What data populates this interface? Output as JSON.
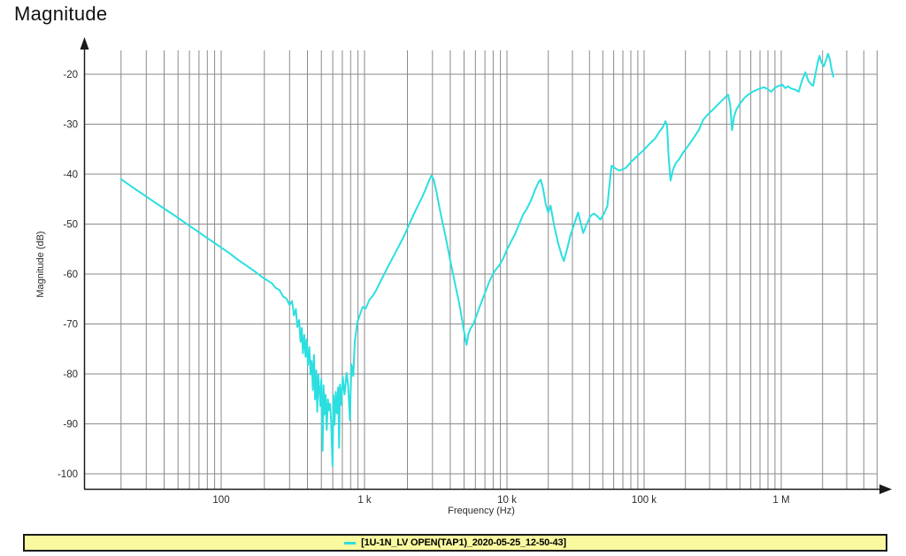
{
  "page": {
    "title": "Magnitude"
  },
  "colors": {
    "trace": "#2BDFE0",
    "grid": "#8a8a8a",
    "axis": "#1a1a1a",
    "legend_background": "#F9F9A0",
    "legend_border": "#1a1a1a",
    "text": "#2b2b2b"
  },
  "chart_data": {
    "type": "line",
    "title": "Magnitude",
    "xlabel": "Frequency (Hz)",
    "ylabel": "Magnitude (dB)",
    "x_scale": "log",
    "xlim": [
      10.5,
      5000000
    ],
    "ylim": [
      -105,
      -14
    ],
    "grid": true,
    "x_ticks": [
      {
        "value": 100,
        "label": "100"
      },
      {
        "value": 1000,
        "label": "1 k"
      },
      {
        "value": 10000,
        "label": "10 k"
      },
      {
        "value": 100000,
        "label": "100 k"
      },
      {
        "value": 1000000,
        "label": "1 M"
      }
    ],
    "y_ticks": [
      {
        "value": -20,
        "label": "-20"
      },
      {
        "value": -30,
        "label": "-30"
      },
      {
        "value": -40,
        "label": "-40"
      },
      {
        "value": -50,
        "label": "-50"
      },
      {
        "value": -60,
        "label": "-60"
      },
      {
        "value": -70,
        "label": "-70"
      },
      {
        "value": -80,
        "label": "-80"
      },
      {
        "value": -90,
        "label": "-90"
      },
      {
        "value": -100,
        "label": "-100"
      }
    ],
    "legend": {
      "position": "bottom",
      "entries": [
        {
          "label": "[1U-1N_LV OPEN(TAP1)_2020-05-25_12-50-43]",
          "color": "#2BDFE0"
        }
      ]
    },
    "series": [
      {
        "name": "[1U-1N_LV OPEN(TAP1)_2020-05-25_12-50-43]",
        "color": "#2BDFE0",
        "points": [
          [
            20,
            -41.0
          ],
          [
            24,
            -42.6
          ],
          [
            28,
            -43.9
          ],
          [
            33,
            -45.3
          ],
          [
            40,
            -46.9
          ],
          [
            48,
            -48.4
          ],
          [
            57,
            -49.9
          ],
          [
            68,
            -51.4
          ],
          [
            80,
            -52.8
          ],
          [
            90,
            -53.8
          ],
          [
            100,
            -54.7
          ],
          [
            115,
            -55.9
          ],
          [
            130,
            -57.1
          ],
          [
            150,
            -58.3
          ],
          [
            170,
            -59.4
          ],
          [
            195,
            -60.7
          ],
          [
            210,
            -61.3
          ],
          [
            225,
            -61.8
          ],
          [
            240,
            -62.8
          ],
          [
            255,
            -63.2
          ],
          [
            270,
            -64.5
          ],
          [
            285,
            -64.9
          ],
          [
            300,
            -66.2
          ],
          [
            312,
            -65.4
          ],
          [
            322,
            -68.3
          ],
          [
            332,
            -67.0
          ],
          [
            340,
            -70.6
          ],
          [
            350,
            -69.2
          ],
          [
            358,
            -73.6
          ],
          [
            365,
            -70.8
          ],
          [
            372,
            -75.9
          ],
          [
            380,
            -72.2
          ],
          [
            388,
            -76.6
          ],
          [
            395,
            -73.1
          ],
          [
            403,
            -78.2
          ],
          [
            412,
            -74.6
          ],
          [
            420,
            -80.1
          ],
          [
            428,
            -77.4
          ],
          [
            436,
            -83.2
          ],
          [
            444,
            -76.2
          ],
          [
            452,
            -85.1
          ],
          [
            460,
            -79.3
          ],
          [
            468,
            -87.6
          ],
          [
            476,
            -80.2
          ],
          [
            484,
            -82.9
          ],
          [
            492,
            -86.4
          ],
          [
            500,
            -81.0
          ],
          [
            510,
            -95.4
          ],
          [
            518,
            -82.3
          ],
          [
            526,
            -88.1
          ],
          [
            535,
            -84.2
          ],
          [
            545,
            -91.2
          ],
          [
            555,
            -85.1
          ],
          [
            565,
            -87.3
          ],
          [
            575,
            -86.0
          ],
          [
            585,
            -89.5
          ],
          [
            598,
            -98.4
          ],
          [
            608,
            -84.3
          ],
          [
            618,
            -90.2
          ],
          [
            630,
            -83.6
          ],
          [
            642,
            -87.9
          ],
          [
            655,
            -82.7
          ],
          [
            665,
            -94.8
          ],
          [
            675,
            -82.1
          ],
          [
            690,
            -86.2
          ],
          [
            705,
            -80.6
          ],
          [
            725,
            -84.1
          ],
          [
            750,
            -79.8
          ],
          [
            770,
            -82.5
          ],
          [
            790,
            -89.2
          ],
          [
            812,
            -78.1
          ],
          [
            835,
            -80.4
          ],
          [
            855,
            -73.6
          ],
          [
            890,
            -69.7
          ],
          [
            930,
            -68.1
          ],
          [
            970,
            -66.6
          ],
          [
            1020,
            -66.9
          ],
          [
            1080,
            -65.2
          ],
          [
            1140,
            -64.4
          ],
          [
            1200,
            -63.4
          ],
          [
            1300,
            -61.4
          ],
          [
            1400,
            -59.6
          ],
          [
            1500,
            -57.9
          ],
          [
            1600,
            -56.4
          ],
          [
            1750,
            -54.3
          ],
          [
            1900,
            -52.3
          ],
          [
            2100,
            -49.5
          ],
          [
            2300,
            -47.1
          ],
          [
            2500,
            -45.0
          ],
          [
            2700,
            -42.9
          ],
          [
            2850,
            -41.2
          ],
          [
            2950,
            -40.3
          ],
          [
            3050,
            -41.0
          ],
          [
            3200,
            -43.5
          ],
          [
            3400,
            -47.5
          ],
          [
            3700,
            -52.4
          ],
          [
            4000,
            -57.3
          ],
          [
            4300,
            -61.7
          ],
          [
            4600,
            -65.6
          ],
          [
            4850,
            -69.3
          ],
          [
            5000,
            -71.5
          ],
          [
            5100,
            -73.0
          ],
          [
            5200,
            -74.2
          ],
          [
            5350,
            -72.1
          ],
          [
            5550,
            -70.9
          ],
          [
            5800,
            -70.1
          ],
          [
            6100,
            -68.4
          ],
          [
            6500,
            -66.2
          ],
          [
            7000,
            -63.8
          ],
          [
            7600,
            -61.2
          ],
          [
            8200,
            -59.4
          ],
          [
            8800,
            -58.3
          ],
          [
            9400,
            -56.9
          ],
          [
            10000,
            -55.1
          ],
          [
            10700,
            -53.5
          ],
          [
            11400,
            -52.1
          ],
          [
            12200,
            -50.2
          ],
          [
            13100,
            -48.1
          ],
          [
            14000,
            -46.9
          ],
          [
            15000,
            -45.2
          ],
          [
            16000,
            -43.2
          ],
          [
            17000,
            -41.6
          ],
          [
            17600,
            -41.1
          ],
          [
            18300,
            -42.8
          ],
          [
            19200,
            -46.1
          ],
          [
            20000,
            -47.7
          ],
          [
            20800,
            -46.3
          ],
          [
            22000,
            -50.1
          ],
          [
            23500,
            -53.6
          ],
          [
            25000,
            -56.2
          ],
          [
            26000,
            -57.4
          ],
          [
            27500,
            -54.9
          ],
          [
            29000,
            -52.3
          ],
          [
            31000,
            -49.9
          ],
          [
            33000,
            -47.7
          ],
          [
            34500,
            -49.8
          ],
          [
            36000,
            -51.8
          ],
          [
            38000,
            -50.1
          ],
          [
            40500,
            -48.4
          ],
          [
            43000,
            -47.9
          ],
          [
            45500,
            -48.4
          ],
          [
            48000,
            -49.1
          ],
          [
            51000,
            -47.9
          ],
          [
            54000,
            -46.4
          ],
          [
            56000,
            -41.9
          ],
          [
            58000,
            -38.3
          ],
          [
            60000,
            -38.6
          ],
          [
            63000,
            -39.0
          ],
          [
            66000,
            -39.3
          ],
          [
            70000,
            -39.0
          ],
          [
            74000,
            -38.7
          ],
          [
            80000,
            -37.6
          ],
          [
            86000,
            -36.8
          ],
          [
            93000,
            -35.9
          ],
          [
            100000,
            -35.1
          ],
          [
            110000,
            -33.9
          ],
          [
            120000,
            -32.9
          ],
          [
            130000,
            -31.4
          ],
          [
            137000,
            -30.6
          ],
          [
            143000,
            -29.4
          ],
          [
            147000,
            -30.2
          ],
          [
            151000,
            -36.5
          ],
          [
            156000,
            -41.3
          ],
          [
            162000,
            -39.2
          ],
          [
            170000,
            -37.8
          ],
          [
            180000,
            -37.0
          ],
          [
            193000,
            -35.6
          ],
          [
            210000,
            -34.3
          ],
          [
            230000,
            -32.7
          ],
          [
            250000,
            -31.2
          ],
          [
            270000,
            -29.1
          ],
          [
            295000,
            -27.9
          ],
          [
            320000,
            -27.0
          ],
          [
            350000,
            -25.9
          ],
          [
            375000,
            -25.1
          ],
          [
            395000,
            -24.5
          ],
          [
            410000,
            -24.1
          ],
          [
            425000,
            -26.3
          ],
          [
            438000,
            -31.2
          ],
          [
            452000,
            -28.6
          ],
          [
            470000,
            -27.1
          ],
          [
            500000,
            -25.9
          ],
          [
            540000,
            -24.7
          ],
          [
            580000,
            -24.0
          ],
          [
            630000,
            -23.4
          ],
          [
            690000,
            -22.9
          ],
          [
            750000,
            -22.6
          ],
          [
            800000,
            -23.0
          ],
          [
            845000,
            -23.5
          ],
          [
            900000,
            -22.7
          ],
          [
            960000,
            -22.3
          ],
          [
            1020000,
            -22.1
          ],
          [
            1070000,
            -22.8
          ],
          [
            1120000,
            -22.4
          ],
          [
            1190000,
            -22.9
          ],
          [
            1270000,
            -23.1
          ],
          [
            1340000,
            -23.5
          ],
          [
            1420000,
            -21.2
          ],
          [
            1500000,
            -19.6
          ],
          [
            1580000,
            -21.4
          ],
          [
            1660000,
            -22.1
          ],
          [
            1710000,
            -22.3
          ],
          [
            1780000,
            -19.8
          ],
          [
            1850000,
            -17.5
          ],
          [
            1900000,
            -16.3
          ],
          [
            1960000,
            -17.6
          ],
          [
            2040000,
            -18.4
          ],
          [
            2120000,
            -17.2
          ],
          [
            2190000,
            -15.9
          ],
          [
            2260000,
            -17.0
          ],
          [
            2330000,
            -19.0
          ],
          [
            2400000,
            -20.5
          ]
        ]
      }
    ]
  }
}
